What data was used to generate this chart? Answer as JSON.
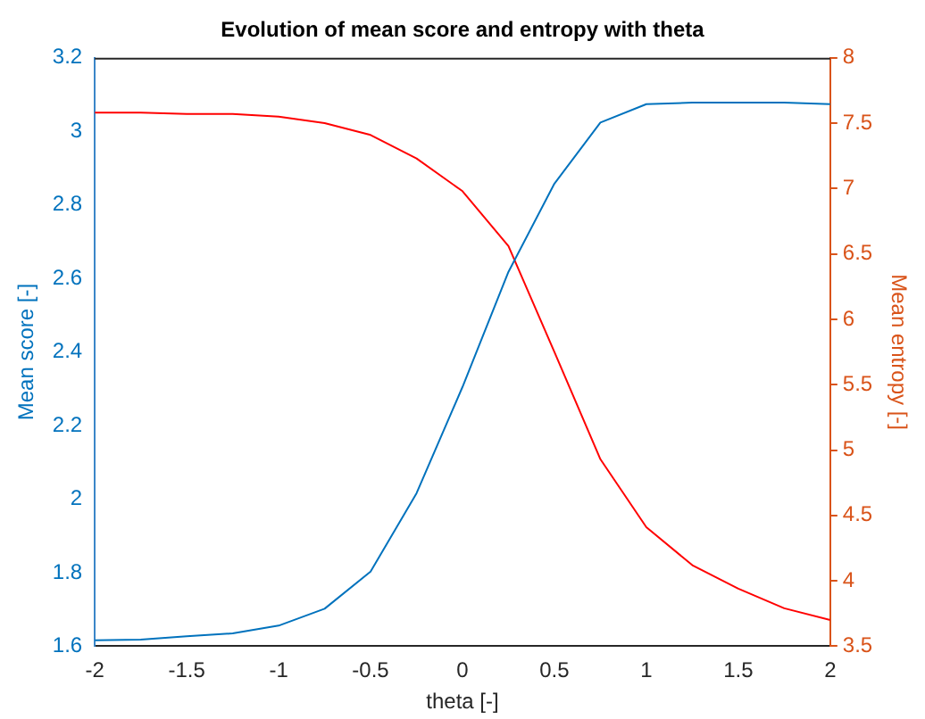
{
  "chart_data": {
    "type": "line",
    "title": "Evolution of mean score and entropy with theta",
    "xlabel": "theta [-]",
    "ylabel": "Mean score [-]",
    "y2label": "Mean entropy [-]",
    "x": [
      -2,
      -1.75,
      -1.5,
      -1.25,
      -1,
      -0.75,
      -0.5,
      -0.25,
      0,
      0.25,
      0.5,
      0.75,
      1,
      1.25,
      1.5,
      1.75,
      2
    ],
    "series": [
      {
        "color": "#0072bd",
        "values": [
          1.616,
          1.618,
          1.627,
          1.635,
          1.656,
          1.702,
          1.803,
          2.016,
          2.305,
          2.618,
          2.858,
          3.024,
          3.074,
          3.078,
          3.078,
          3.078,
          3.074
        ]
      },
      {
        "color": "#ff0000",
        "axis": "y2",
        "values": [
          7.58,
          7.58,
          7.57,
          7.57,
          7.55,
          7.5,
          7.41,
          7.23,
          6.98,
          6.56,
          5.75,
          4.93,
          4.41,
          4.12,
          3.94,
          3.79,
          3.7
        ]
      }
    ],
    "xlim": [
      -2,
      2
    ],
    "xticks": [
      -2,
      -1.5,
      -1,
      -0.5,
      0,
      0.5,
      1,
      1.5,
      2
    ],
    "ylim": [
      1.6,
      3.2
    ],
    "yticks": [
      1.6,
      1.8,
      2,
      2.2,
      2.4,
      2.6,
      2.8,
      3,
      3.2
    ],
    "y2lim": [
      3.5,
      8
    ],
    "y2ticks": [
      3.5,
      4,
      4.5,
      5,
      5.5,
      6,
      6.5,
      7,
      7.5,
      8
    ],
    "grid": false,
    "legend": false,
    "marker": "none",
    "line_style": "solid"
  }
}
